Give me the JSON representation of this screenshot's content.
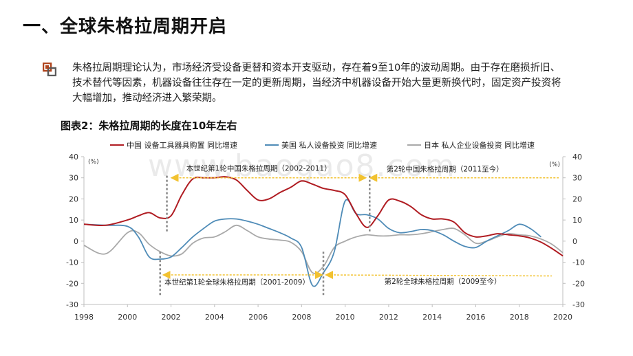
{
  "page": {
    "title": "一、全球朱格拉周期开启",
    "bullet_icon": "square-bullet-icon",
    "paragraph": "朱格拉周期理论认为，市场经济受设备更替和资本开支驱动，存在着9至10年的波动周期。由于存在磨损折旧、技术替代等因素，机器设备往往存在一定的更新周期，当经济中机器设备开始大量更新换代时，固定资产投资将大幅增加，推动经济进入繁荣期。",
    "watermark": "www.baogao8.com"
  },
  "chart_data": {
    "type": "line",
    "title": "图表2：朱格拉周期的长度在10年左右",
    "unit_left": "(%)",
    "unit_right": "(%)",
    "xlim": [
      1998,
      2020
    ],
    "ylim": [
      -30,
      40
    ],
    "xticks": [
      "1998",
      "2000",
      "2002",
      "2004",
      "2006",
      "2008",
      "2010",
      "2012",
      "2014",
      "2016",
      "2018",
      "2020"
    ],
    "yticks": [
      "40",
      "30",
      "20",
      "10",
      "0",
      "-10",
      "-20",
      "-30"
    ],
    "series": [
      {
        "name": "中国 设备工具器具购置 同比增速",
        "color": "#b01c22",
        "x": [
          1998,
          1999,
          2000,
          2000.5,
          2001,
          2001.5,
          2002,
          2002.5,
          2003,
          2003.5,
          2004,
          2004.5,
          2005,
          2005.5,
          2006,
          2006.5,
          2007,
          2007.5,
          2008,
          2008.5,
          2009,
          2009.5,
          2010,
          2010.5,
          2011,
          2011.5,
          2012,
          2012.5,
          2013,
          2013.5,
          2014,
          2014.5,
          2015,
          2015.5,
          2016,
          2016.5,
          2017,
          2017.5,
          2018,
          2018.5,
          2019,
          2019.5,
          2020
        ],
        "y": [
          8,
          7.5,
          10,
          12,
          13.5,
          11,
          12,
          22,
          29.5,
          30,
          30,
          30.5,
          29,
          24,
          19.5,
          20,
          23,
          25.5,
          28.5,
          27,
          25,
          24,
          22,
          13,
          6.5,
          12,
          19.5,
          19,
          16.5,
          12.5,
          10.5,
          10.5,
          9,
          4,
          2,
          2.5,
          3.5,
          3,
          2.5,
          1.5,
          -0.5,
          -3.5,
          -7
        ]
      },
      {
        "name": "美国 私人设备投资 同比增速",
        "color": "#4e8bb7",
        "x": [
          1998,
          1999,
          2000,
          2000.5,
          2001,
          2001.5,
          2002,
          2002.5,
          2003,
          2003.5,
          2004,
          2004.5,
          2005,
          2005.5,
          2006,
          2006.5,
          2007,
          2007.5,
          2008,
          2008.5,
          2009,
          2009.5,
          2010,
          2010.5,
          2011,
          2011.5,
          2012,
          2012.5,
          2013,
          2013.5,
          2014,
          2014.5,
          2015,
          2015.5,
          2016,
          2016.5,
          2017,
          2017.5,
          2018,
          2018.5,
          2019
        ],
        "y": [
          8,
          7.5,
          7,
          2,
          -7.5,
          -8.5,
          -7.5,
          -3,
          2,
          6,
          9.5,
          10.5,
          10.5,
          9.5,
          8,
          6,
          4,
          1.5,
          -3,
          -21,
          -15,
          -5,
          19,
          13,
          12.5,
          10.5,
          6,
          4,
          4.5,
          5.5,
          5,
          3,
          0,
          -2.5,
          -3,
          0,
          2.5,
          5,
          8,
          6,
          2
        ]
      },
      {
        "name": "日本 私人企业设备投资 同比增速",
        "color": "#a9a9a9",
        "x": [
          1998,
          1999,
          2000,
          2000.5,
          2001,
          2001.5,
          2002,
          2002.5,
          2003,
          2003.5,
          2004,
          2004.5,
          2005,
          2005.5,
          2006,
          2006.5,
          2007,
          2007.5,
          2008,
          2008.5,
          2009,
          2009.5,
          2010,
          2010.5,
          2011,
          2011.5,
          2012,
          2012.5,
          2013,
          2013.5,
          2014,
          2014.5,
          2015,
          2015.5,
          2016,
          2016.5,
          2017,
          2017.5,
          2018,
          2018.5,
          2019,
          2019.5,
          2020
        ],
        "y": [
          -2,
          -6,
          4,
          4,
          -1.5,
          -5,
          -7,
          -6,
          -1,
          1.5,
          2,
          4.5,
          7.5,
          5,
          2,
          1,
          0.5,
          -0.5,
          -5,
          -15,
          -12,
          -3,
          0,
          2,
          3,
          2.5,
          2.5,
          3,
          3,
          3.5,
          4.5,
          5.5,
          6,
          3,
          -1,
          0,
          2,
          3.5,
          3,
          2.5,
          1,
          -1.5,
          -5.5
        ]
      }
    ],
    "annotations": {
      "china_cycle_1": "本世纪第1轮中国朱格拉周期（2002-2011）",
      "china_cycle_2": "第2轮中国朱格拉周期（2011至今）",
      "global_cycle_1": "本世纪第1轮全球朱格拉周期（2001-2009）",
      "global_cycle_2": "第2轮全球朱格拉周期（2009至今）",
      "china_boundaries": [
        2002,
        2011
      ],
      "global_boundaries": [
        2001.5,
        2009
      ],
      "arrow_color": "#f2c230",
      "divider_color": "#888888"
    }
  }
}
